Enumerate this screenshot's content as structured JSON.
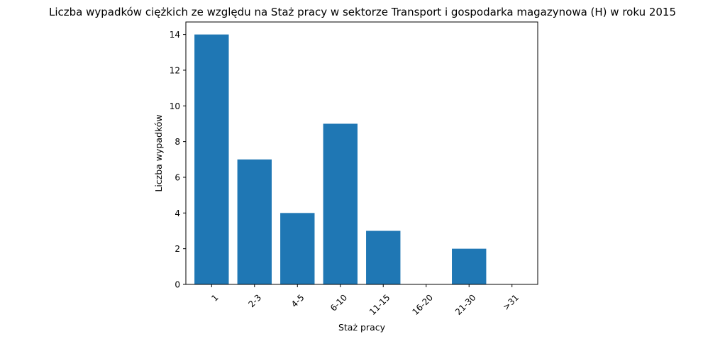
{
  "chart_data": {
    "type": "bar",
    "title": "Liczba wypadków ciężkich ze względu na Staż pracy w sektorze Transport i gospodarka magazynowa  (H)   w roku 2015",
    "xlabel": "Staż pracy",
    "ylabel": "Liczba wypadków",
    "categories": [
      "1",
      "2-3",
      "4-5",
      "6-10",
      "11-15",
      "16-20",
      "21-30",
      ">31"
    ],
    "values": [
      14,
      7,
      4,
      9,
      3,
      0,
      2,
      0
    ],
    "ylim": [
      0,
      14.7
    ],
    "yticks": [
      0,
      2,
      4,
      6,
      8,
      10,
      12,
      14
    ],
    "grid": false,
    "bar_color": "#1f77b4"
  }
}
